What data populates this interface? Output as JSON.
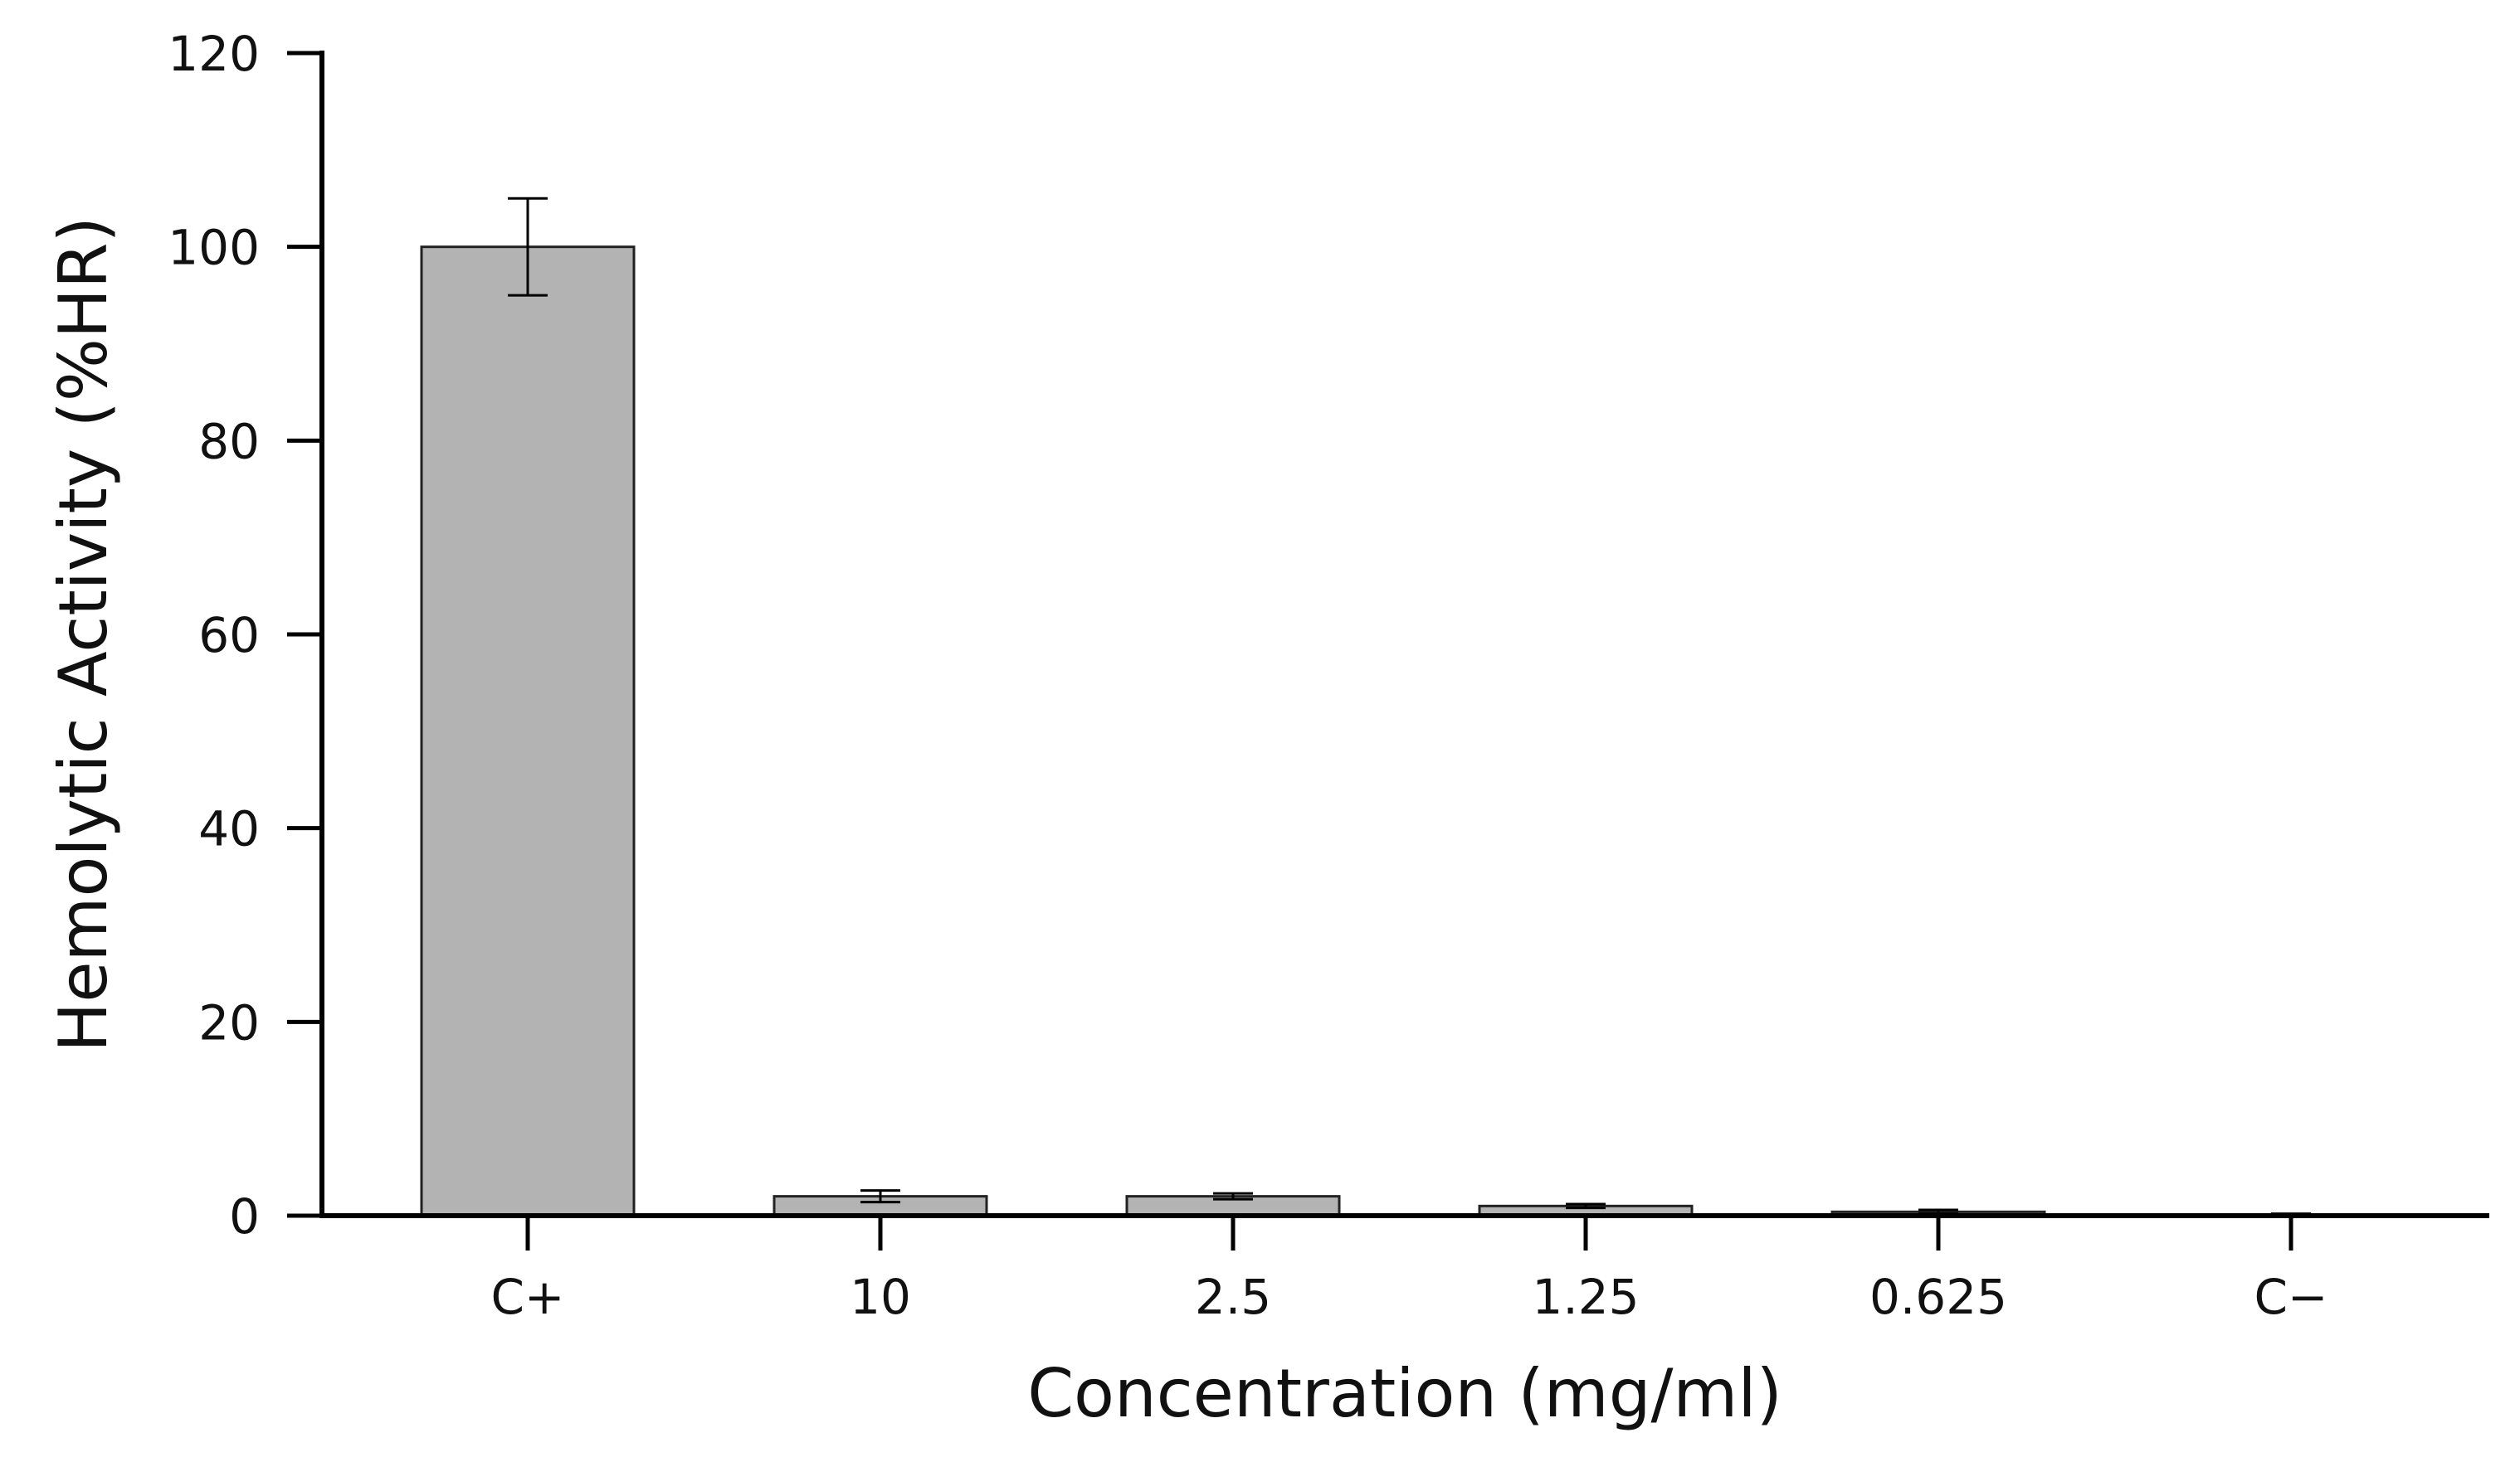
{
  "chart_data": {
    "type": "bar",
    "title": "",
    "xlabel": "Concentration (mg/ml)",
    "ylabel": "Hemolytic Activity (%HR)",
    "categories": [
      "C+",
      "10",
      "2.5",
      "1.25",
      "0.625",
      "C−"
    ],
    "values": [
      100,
      2.0,
      2.0,
      1.0,
      0.4,
      0.1
    ],
    "errors": [
      5.0,
      0.6,
      0.3,
      0.2,
      0.2,
      0.1
    ],
    "ylim": [
      0,
      120
    ],
    "yticks": [
      "0",
      "20",
      "40",
      "60",
      "80",
      "100",
      "120"
    ],
    "grid": false,
    "legend": "none",
    "bar_color": "#b3b3b3",
    "edge_color": "#222222"
  }
}
